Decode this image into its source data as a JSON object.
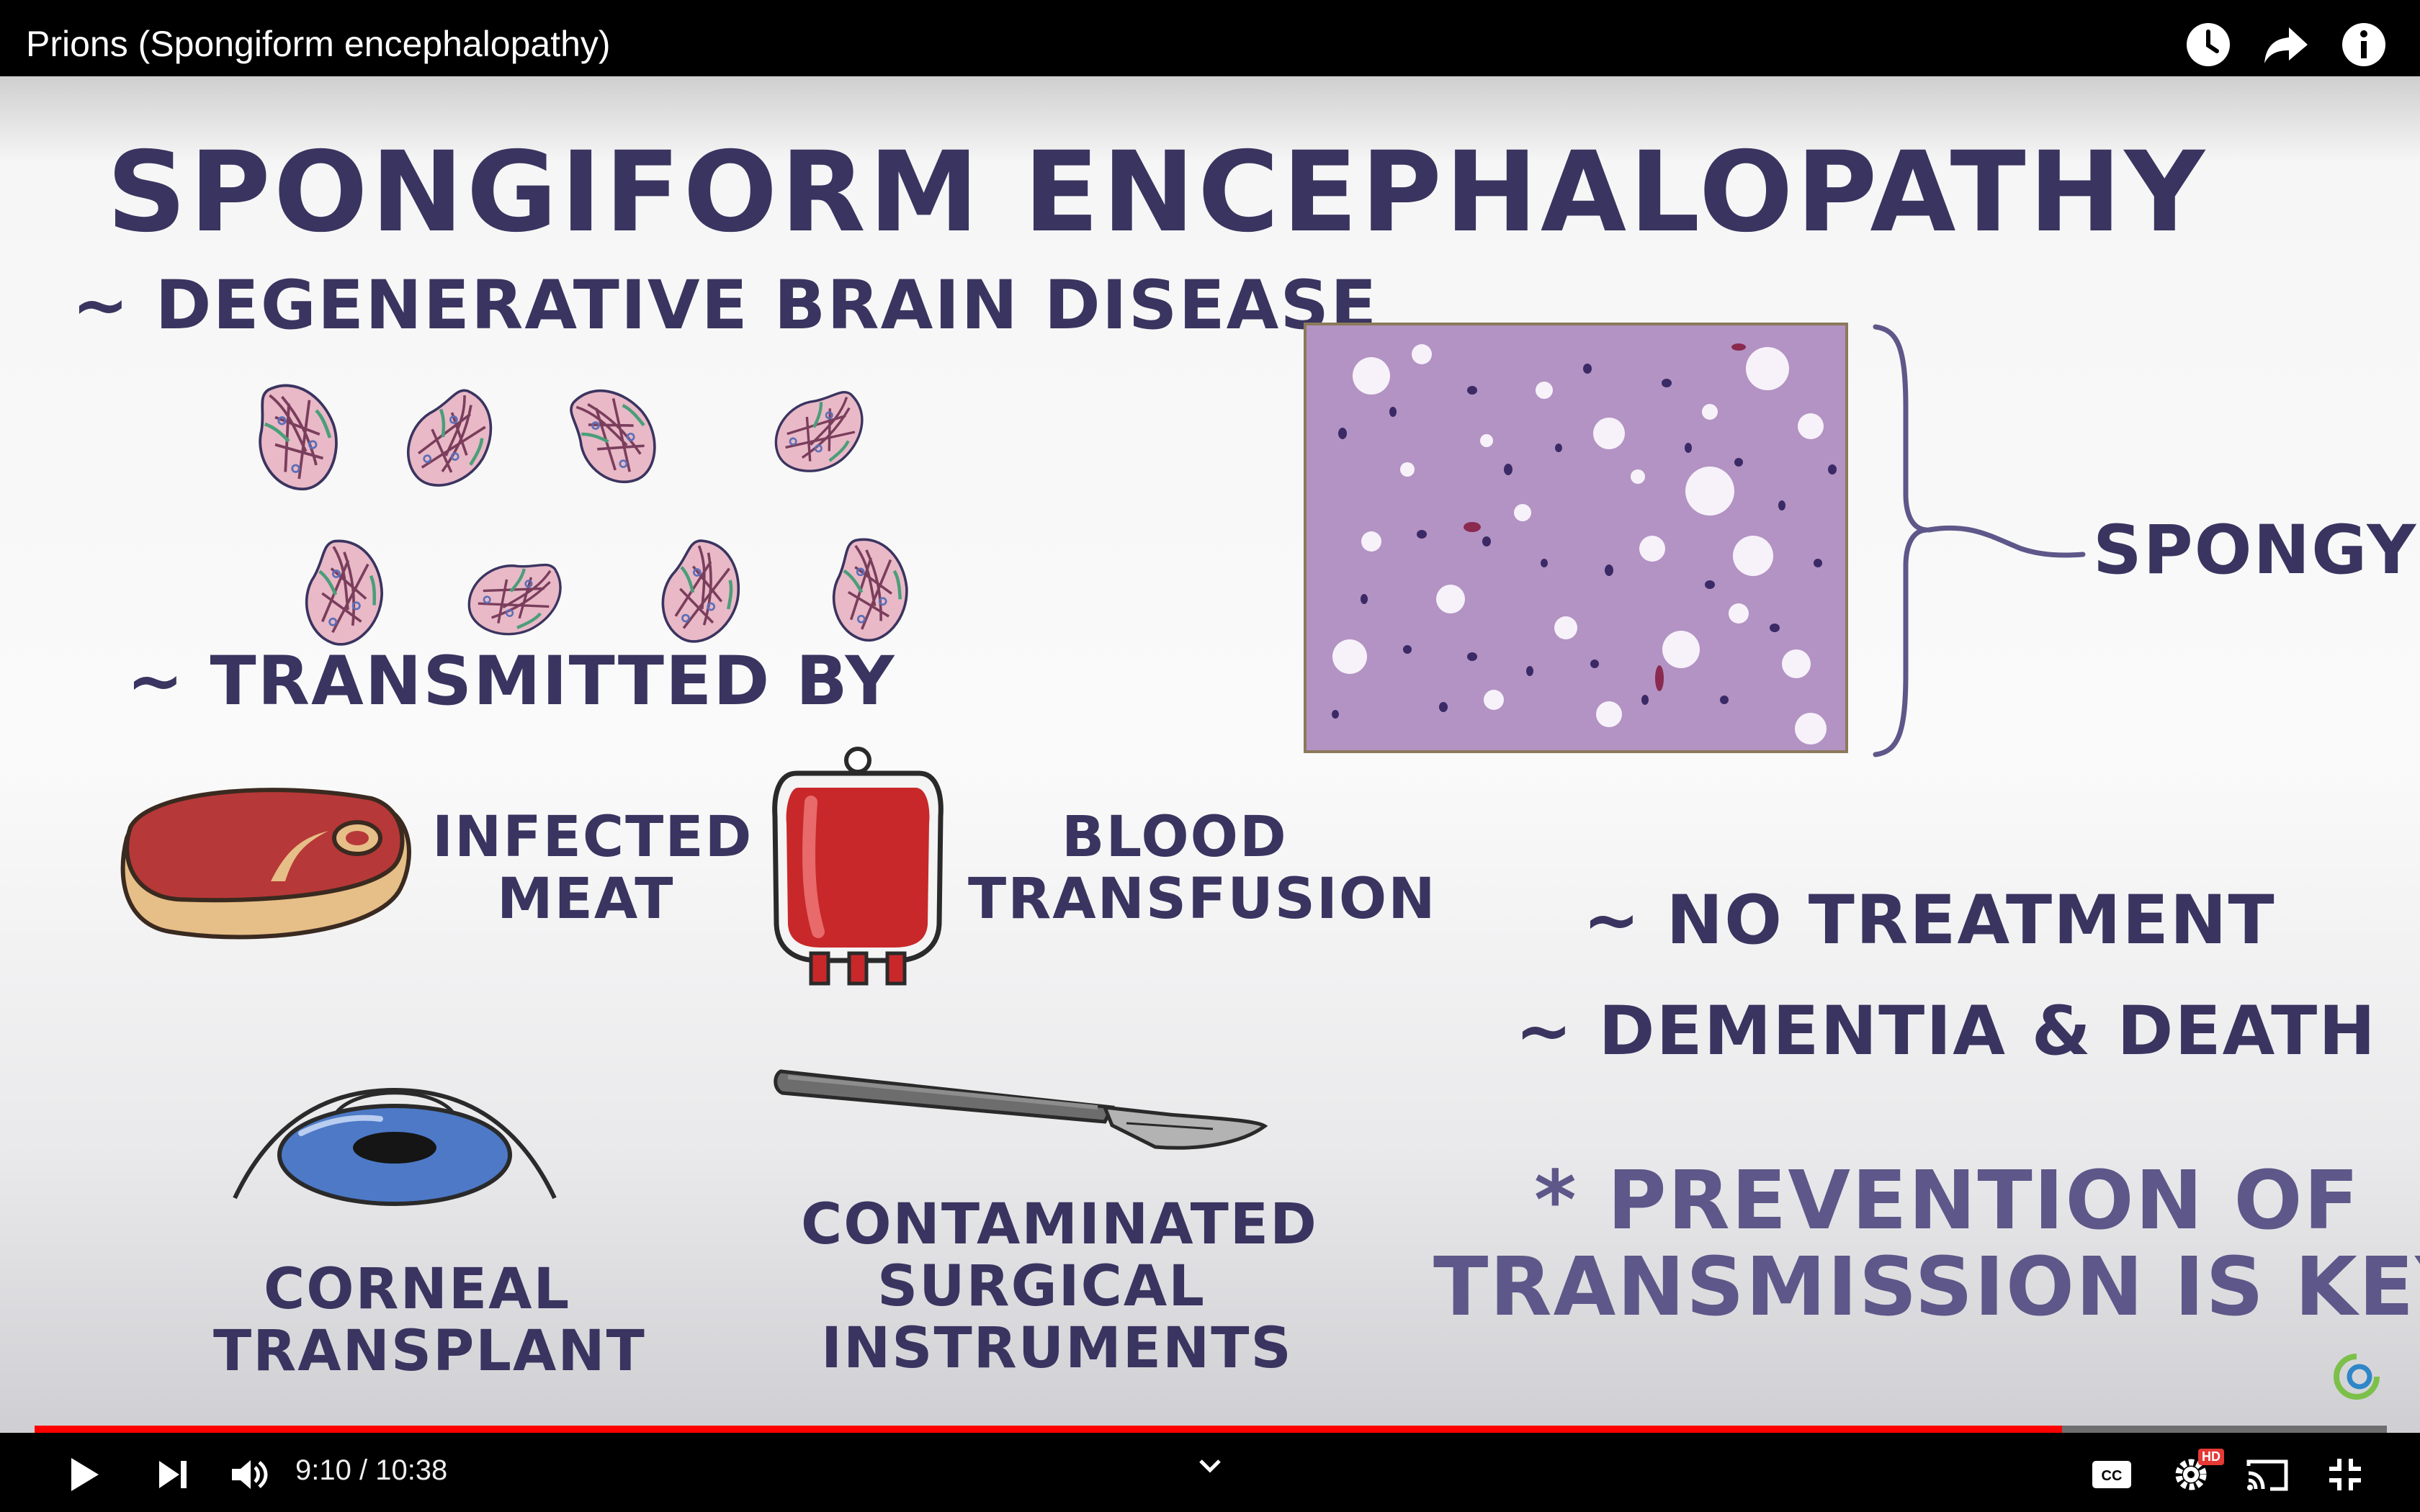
{
  "player": {
    "video_title": "Prions (Spongiform encephalopathy)",
    "current_time": "9:10",
    "duration": "10:38",
    "time_separator": " / ",
    "progress": 0.862,
    "hd_badge": "HD",
    "accent_color": "#ff0000"
  },
  "top_icons": [
    "watch-later-icon",
    "share-icon",
    "info-icon"
  ],
  "slide": {
    "title": "SPONGIFORM ENCEPHALOPATHY",
    "bullet_degenerative": "~ DEGENERATIVE BRAIN DISEASE",
    "bullet_transmitted": "~ TRANSMITTED BY",
    "label_infected": "INFECTED",
    "label_meat": "MEAT",
    "label_blood": "BLOOD",
    "label_transfusion": "TRANSFUSION",
    "label_corneal": "CORNEAL",
    "label_transplant": "TRANSPLANT",
    "label_contaminated": "CONTAMINATED",
    "label_surgical": "SURGICAL",
    "label_instruments": "INSTRUMENTS",
    "label_spongy": "SPONGY",
    "bullet_no_treatment": "~ NO TREATMENT",
    "bullet_dementia": "~ DEMENTIA & DEATH",
    "key_line1": "* PREVENTION OF",
    "key_line2": "TRANSMISSION IS KEY *",
    "ink_color": "#3a3460"
  }
}
